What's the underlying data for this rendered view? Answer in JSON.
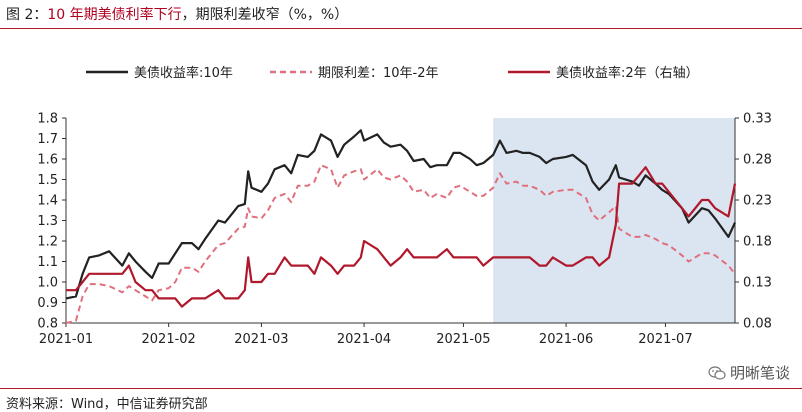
{
  "header": {
    "figure_label": "图 2：",
    "title_highlight": "10 年期美债利率下行",
    "title_rest": "，期限利差收窄（%，%）"
  },
  "footer": {
    "source": "资料来源：Wind，中信证券研究部",
    "watermark": "明晰笔谈"
  },
  "chart_data": {
    "type": "line",
    "title": "",
    "x_tick_labels": [
      "2021-01",
      "2021-02",
      "2021-03",
      "2021-04",
      "2021-05",
      "2021-06",
      "2021-07"
    ],
    "x_range": [
      "2021-01-01",
      "2021-07-22"
    ],
    "y_left": {
      "range": [
        0.8,
        1.8
      ],
      "ticks": [
        "0.8",
        "0.9",
        "1.0",
        "1.1",
        "1.2",
        "1.3",
        "1.4",
        "1.5",
        "1.6",
        "1.7",
        "1.8"
      ]
    },
    "y_right": {
      "range": [
        0.08,
        0.33
      ],
      "ticks": [
        "0.08",
        "0.13",
        "0.18",
        "0.23",
        "0.28",
        "0.33"
      ]
    },
    "highlight_region": {
      "x_start": "2021-05-10",
      "x_end": "2021-07-22",
      "color": "#dbe5f1"
    },
    "grid": false,
    "legend_position": "top",
    "colors": {
      "us10y": "#222222",
      "spread": "#e0707e",
      "us2y": "#b0182c"
    },
    "series": [
      {
        "name": "美债收益率:10年",
        "axis": "left",
        "style": "solid",
        "points": [
          [
            "2021-01-01",
            0.92
          ],
          [
            "2021-01-04",
            0.93
          ],
          [
            "2021-01-06",
            1.04
          ],
          [
            "2021-01-08",
            1.12
          ],
          [
            "2021-01-11",
            1.13
          ],
          [
            "2021-01-14",
            1.15
          ],
          [
            "2021-01-18",
            1.08
          ],
          [
            "2021-01-20",
            1.14
          ],
          [
            "2021-01-22",
            1.1
          ],
          [
            "2021-01-25",
            1.05
          ],
          [
            "2021-01-27",
            1.02
          ],
          [
            "2021-01-29",
            1.09
          ],
          [
            "2021-02-01",
            1.09
          ],
          [
            "2021-02-03",
            1.14
          ],
          [
            "2021-02-05",
            1.19
          ],
          [
            "2021-02-08",
            1.19
          ],
          [
            "2021-02-10",
            1.16
          ],
          [
            "2021-02-12",
            1.21
          ],
          [
            "2021-02-16",
            1.3
          ],
          [
            "2021-02-18",
            1.29
          ],
          [
            "2021-02-22",
            1.37
          ],
          [
            "2021-02-24",
            1.38
          ],
          [
            "2021-02-25",
            1.54
          ],
          [
            "2021-02-26",
            1.46
          ],
          [
            "2021-03-01",
            1.44
          ],
          [
            "2021-03-03",
            1.48
          ],
          [
            "2021-03-05",
            1.55
          ],
          [
            "2021-03-08",
            1.57
          ],
          [
            "2021-03-10",
            1.53
          ],
          [
            "2021-03-12",
            1.62
          ],
          [
            "2021-03-15",
            1.61
          ],
          [
            "2021-03-17",
            1.64
          ],
          [
            "2021-03-19",
            1.72
          ],
          [
            "2021-03-22",
            1.69
          ],
          [
            "2021-03-24",
            1.61
          ],
          [
            "2021-03-26",
            1.67
          ],
          [
            "2021-03-29",
            1.71
          ],
          [
            "2021-03-31",
            1.74
          ],
          [
            "2021-04-01",
            1.69
          ],
          [
            "2021-04-05",
            1.72
          ],
          [
            "2021-04-07",
            1.68
          ],
          [
            "2021-04-09",
            1.66
          ],
          [
            "2021-04-12",
            1.67
          ],
          [
            "2021-04-14",
            1.64
          ],
          [
            "2021-04-16",
            1.59
          ],
          [
            "2021-04-19",
            1.6
          ],
          [
            "2021-04-21",
            1.56
          ],
          [
            "2021-04-23",
            1.57
          ],
          [
            "2021-04-26",
            1.57
          ],
          [
            "2021-04-28",
            1.63
          ],
          [
            "2021-04-30",
            1.63
          ],
          [
            "2021-05-03",
            1.6
          ],
          [
            "2021-05-05",
            1.57
          ],
          [
            "2021-05-07",
            1.58
          ],
          [
            "2021-05-10",
            1.62
          ],
          [
            "2021-05-12",
            1.69
          ],
          [
            "2021-05-14",
            1.63
          ],
          [
            "2021-05-17",
            1.64
          ],
          [
            "2021-05-19",
            1.63
          ],
          [
            "2021-05-21",
            1.63
          ],
          [
            "2021-05-24",
            1.61
          ],
          [
            "2021-05-26",
            1.58
          ],
          [
            "2021-05-28",
            1.6
          ],
          [
            "2021-06-01",
            1.61
          ],
          [
            "2021-06-03",
            1.62
          ],
          [
            "2021-06-07",
            1.57
          ],
          [
            "2021-06-09",
            1.49
          ],
          [
            "2021-06-11",
            1.45
          ],
          [
            "2021-06-14",
            1.5
          ],
          [
            "2021-06-16",
            1.57
          ],
          [
            "2021-06-17",
            1.51
          ],
          [
            "2021-06-21",
            1.49
          ],
          [
            "2021-06-23",
            1.47
          ],
          [
            "2021-06-25",
            1.52
          ],
          [
            "2021-06-28",
            1.48
          ],
          [
            "2021-06-30",
            1.45
          ],
          [
            "2021-07-02",
            1.43
          ],
          [
            "2021-07-06",
            1.36
          ],
          [
            "2021-07-08",
            1.29
          ],
          [
            "2021-07-12",
            1.36
          ],
          [
            "2021-07-14",
            1.35
          ],
          [
            "2021-07-16",
            1.31
          ],
          [
            "2021-07-20",
            1.22
          ],
          [
            "2021-07-22",
            1.29
          ]
        ]
      },
      {
        "name": "期限利差：10年-2年",
        "axis": "left",
        "style": "dashed",
        "points": [
          [
            "2021-01-01",
            0.8
          ],
          [
            "2021-01-04",
            0.81
          ],
          [
            "2021-01-06",
            0.93
          ],
          [
            "2021-01-08",
            0.99
          ],
          [
            "2021-01-11",
            0.99
          ],
          [
            "2021-01-14",
            0.98
          ],
          [
            "2021-01-18",
            0.95
          ],
          [
            "2021-01-20",
            0.98
          ],
          [
            "2021-01-22",
            0.96
          ],
          [
            "2021-01-25",
            0.93
          ],
          [
            "2021-01-27",
            0.91
          ],
          [
            "2021-01-29",
            0.96
          ],
          [
            "2021-02-01",
            0.97
          ],
          [
            "2021-02-03",
            1.0
          ],
          [
            "2021-02-05",
            1.07
          ],
          [
            "2021-02-08",
            1.07
          ],
          [
            "2021-02-10",
            1.05
          ],
          [
            "2021-02-12",
            1.1
          ],
          [
            "2021-02-16",
            1.18
          ],
          [
            "2021-02-18",
            1.19
          ],
          [
            "2021-02-22",
            1.26
          ],
          [
            "2021-02-24",
            1.27
          ],
          [
            "2021-02-25",
            1.36
          ],
          [
            "2021-02-26",
            1.32
          ],
          [
            "2021-03-01",
            1.31
          ],
          [
            "2021-03-03",
            1.35
          ],
          [
            "2021-03-05",
            1.41
          ],
          [
            "2021-03-08",
            1.43
          ],
          [
            "2021-03-10",
            1.39
          ],
          [
            "2021-03-12",
            1.47
          ],
          [
            "2021-03-15",
            1.47
          ],
          [
            "2021-03-17",
            1.49
          ],
          [
            "2021-03-19",
            1.57
          ],
          [
            "2021-03-22",
            1.55
          ],
          [
            "2021-03-24",
            1.46
          ],
          [
            "2021-03-26",
            1.52
          ],
          [
            "2021-03-29",
            1.54
          ],
          [
            "2021-03-31",
            1.55
          ],
          [
            "2021-04-01",
            1.5
          ],
          [
            "2021-04-05",
            1.55
          ],
          [
            "2021-04-07",
            1.51
          ],
          [
            "2021-04-09",
            1.5
          ],
          [
            "2021-04-12",
            1.52
          ],
          [
            "2021-04-14",
            1.49
          ],
          [
            "2021-04-16",
            1.44
          ],
          [
            "2021-04-19",
            1.45
          ],
          [
            "2021-04-21",
            1.41
          ],
          [
            "2021-04-23",
            1.43
          ],
          [
            "2021-04-26",
            1.41
          ],
          [
            "2021-04-28",
            1.46
          ],
          [
            "2021-04-30",
            1.47
          ],
          [
            "2021-05-03",
            1.44
          ],
          [
            "2021-05-05",
            1.42
          ],
          [
            "2021-05-07",
            1.42
          ],
          [
            "2021-05-10",
            1.46
          ],
          [
            "2021-05-12",
            1.53
          ],
          [
            "2021-05-14",
            1.48
          ],
          [
            "2021-05-17",
            1.49
          ],
          [
            "2021-05-19",
            1.47
          ],
          [
            "2021-05-21",
            1.47
          ],
          [
            "2021-05-24",
            1.45
          ],
          [
            "2021-05-26",
            1.42
          ],
          [
            "2021-05-28",
            1.44
          ],
          [
            "2021-06-01",
            1.45
          ],
          [
            "2021-06-03",
            1.45
          ],
          [
            "2021-06-07",
            1.41
          ],
          [
            "2021-06-09",
            1.33
          ],
          [
            "2021-06-11",
            1.3
          ],
          [
            "2021-06-14",
            1.34
          ],
          [
            "2021-06-16",
            1.37
          ],
          [
            "2021-06-17",
            1.26
          ],
          [
            "2021-06-21",
            1.22
          ],
          [
            "2021-06-23",
            1.22
          ],
          [
            "2021-06-25",
            1.23
          ],
          [
            "2021-06-28",
            1.21
          ],
          [
            "2021-06-30",
            1.19
          ],
          [
            "2021-07-02",
            1.18
          ],
          [
            "2021-07-06",
            1.13
          ],
          [
            "2021-07-08",
            1.1
          ],
          [
            "2021-07-12",
            1.14
          ],
          [
            "2021-07-14",
            1.14
          ],
          [
            "2021-07-16",
            1.13
          ],
          [
            "2021-07-20",
            1.08
          ],
          [
            "2021-07-22",
            1.04
          ]
        ]
      },
      {
        "name": "美债收益率:2年（右轴）",
        "axis": "right",
        "style": "solid",
        "points": [
          [
            "2021-01-01",
            0.12
          ],
          [
            "2021-01-04",
            0.12
          ],
          [
            "2021-01-06",
            0.13
          ],
          [
            "2021-01-08",
            0.14
          ],
          [
            "2021-01-11",
            0.14
          ],
          [
            "2021-01-14",
            0.14
          ],
          [
            "2021-01-18",
            0.14
          ],
          [
            "2021-01-20",
            0.15
          ],
          [
            "2021-01-22",
            0.13
          ],
          [
            "2021-01-25",
            0.12
          ],
          [
            "2021-01-27",
            0.12
          ],
          [
            "2021-01-29",
            0.11
          ],
          [
            "2021-02-01",
            0.11
          ],
          [
            "2021-02-03",
            0.11
          ],
          [
            "2021-02-05",
            0.1
          ],
          [
            "2021-02-08",
            0.11
          ],
          [
            "2021-02-10",
            0.11
          ],
          [
            "2021-02-12",
            0.11
          ],
          [
            "2021-02-16",
            0.12
          ],
          [
            "2021-02-18",
            0.11
          ],
          [
            "2021-02-22",
            0.11
          ],
          [
            "2021-02-24",
            0.12
          ],
          [
            "2021-02-25",
            0.16
          ],
          [
            "2021-02-26",
            0.13
          ],
          [
            "2021-03-01",
            0.13
          ],
          [
            "2021-03-03",
            0.14
          ],
          [
            "2021-03-05",
            0.14
          ],
          [
            "2021-03-08",
            0.16
          ],
          [
            "2021-03-10",
            0.15
          ],
          [
            "2021-03-12",
            0.15
          ],
          [
            "2021-03-15",
            0.15
          ],
          [
            "2021-03-17",
            0.14
          ],
          [
            "2021-03-19",
            0.16
          ],
          [
            "2021-03-22",
            0.15
          ],
          [
            "2021-03-24",
            0.14
          ],
          [
            "2021-03-26",
            0.15
          ],
          [
            "2021-03-29",
            0.15
          ],
          [
            "2021-03-31",
            0.16
          ],
          [
            "2021-04-01",
            0.18
          ],
          [
            "2021-04-05",
            0.17
          ],
          [
            "2021-04-07",
            0.16
          ],
          [
            "2021-04-09",
            0.15
          ],
          [
            "2021-04-12",
            0.16
          ],
          [
            "2021-04-14",
            0.17
          ],
          [
            "2021-04-16",
            0.16
          ],
          [
            "2021-04-19",
            0.16
          ],
          [
            "2021-04-21",
            0.16
          ],
          [
            "2021-04-23",
            0.16
          ],
          [
            "2021-04-26",
            0.17
          ],
          [
            "2021-04-28",
            0.16
          ],
          [
            "2021-04-30",
            0.16
          ],
          [
            "2021-05-03",
            0.16
          ],
          [
            "2021-05-05",
            0.16
          ],
          [
            "2021-05-07",
            0.15
          ],
          [
            "2021-05-10",
            0.16
          ],
          [
            "2021-05-12",
            0.16
          ],
          [
            "2021-05-14",
            0.16
          ],
          [
            "2021-05-17",
            0.16
          ],
          [
            "2021-05-19",
            0.16
          ],
          [
            "2021-05-21",
            0.16
          ],
          [
            "2021-05-24",
            0.15
          ],
          [
            "2021-05-26",
            0.15
          ],
          [
            "2021-05-28",
            0.16
          ],
          [
            "2021-06-01",
            0.15
          ],
          [
            "2021-06-03",
            0.15
          ],
          [
            "2021-06-07",
            0.16
          ],
          [
            "2021-06-09",
            0.16
          ],
          [
            "2021-06-11",
            0.15
          ],
          [
            "2021-06-14",
            0.16
          ],
          [
            "2021-06-16",
            0.2
          ],
          [
            "2021-06-17",
            0.25
          ],
          [
            "2021-06-21",
            0.25
          ],
          [
            "2021-06-23",
            0.26
          ],
          [
            "2021-06-25",
            0.27
          ],
          [
            "2021-06-28",
            0.25
          ],
          [
            "2021-06-30",
            0.25
          ],
          [
            "2021-07-02",
            0.24
          ],
          [
            "2021-07-06",
            0.22
          ],
          [
            "2021-07-08",
            0.21
          ],
          [
            "2021-07-12",
            0.23
          ],
          [
            "2021-07-14",
            0.23
          ],
          [
            "2021-07-16",
            0.22
          ],
          [
            "2021-07-20",
            0.21
          ],
          [
            "2021-07-22",
            0.25
          ]
        ]
      }
    ]
  }
}
